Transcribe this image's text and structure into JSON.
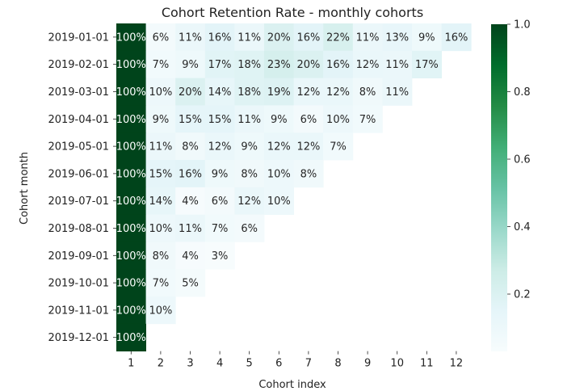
{
  "chart_data": {
    "type": "heatmap",
    "title": "Cohort Retention Rate - monthly cohorts",
    "xlabel": "Cohort index",
    "ylabel": "Cohort month",
    "x": [
      "1",
      "2",
      "3",
      "4",
      "5",
      "6",
      "7",
      "8",
      "9",
      "10",
      "11",
      "12"
    ],
    "y": [
      "2019-01-01",
      "2019-02-01",
      "2019-03-01",
      "2019-04-01",
      "2019-05-01",
      "2019-06-01",
      "2019-07-01",
      "2019-08-01",
      "2019-09-01",
      "2019-10-01",
      "2019-11-01",
      "2019-12-01"
    ],
    "values": [
      [
        1.0,
        0.06,
        0.11,
        0.16,
        0.11,
        0.2,
        0.16,
        0.22,
        0.11,
        0.13,
        0.09,
        0.16
      ],
      [
        1.0,
        0.07,
        0.09,
        0.17,
        0.18,
        0.23,
        0.2,
        0.16,
        0.12,
        0.11,
        0.17
      ],
      [
        1.0,
        0.1,
        0.2,
        0.14,
        0.18,
        0.19,
        0.12,
        0.12,
        0.08,
        0.11
      ],
      [
        1.0,
        0.09,
        0.15,
        0.15,
        0.11,
        0.09,
        0.06,
        0.1,
        0.07
      ],
      [
        1.0,
        0.11,
        0.08,
        0.12,
        0.09,
        0.12,
        0.12,
        0.07
      ],
      [
        1.0,
        0.15,
        0.16,
        0.09,
        0.08,
        0.1,
        0.08
      ],
      [
        1.0,
        0.14,
        0.04,
        0.06,
        0.12,
        0.1
      ],
      [
        1.0,
        0.1,
        0.11,
        0.07,
        0.06
      ],
      [
        1.0,
        0.08,
        0.04,
        0.03
      ],
      [
        1.0,
        0.07,
        0.05
      ],
      [
        1.0,
        0.1
      ],
      [
        1.0
      ]
    ],
    "labels": [
      [
        "100%",
        "6%",
        "11%",
        "16%",
        "11%",
        "20%",
        "16%",
        "22%",
        "11%",
        "13%",
        "9%",
        "16%"
      ],
      [
        "100%",
        "7%",
        "9%",
        "17%",
        "18%",
        "23%",
        "20%",
        "16%",
        "12%",
        "11%",
        "17%"
      ],
      [
        "100%",
        "10%",
        "20%",
        "14%",
        "18%",
        "19%",
        "12%",
        "12%",
        "8%",
        "11%"
      ],
      [
        "100%",
        "9%",
        "15%",
        "15%",
        "11%",
        "9%",
        "6%",
        "10%",
        "7%"
      ],
      [
        "100%",
        "11%",
        "8%",
        "12%",
        "9%",
        "12%",
        "12%",
        "7%"
      ],
      [
        "100%",
        "15%",
        "16%",
        "9%",
        "8%",
        "10%",
        "8%"
      ],
      [
        "100%",
        "14%",
        "4%",
        "6%",
        "12%",
        "10%"
      ],
      [
        "100%",
        "10%",
        "11%",
        "7%",
        "6%"
      ],
      [
        "100%",
        "8%",
        "4%",
        "3%"
      ],
      [
        "100%",
        "7%",
        "5%"
      ],
      [
        "100%",
        "10%"
      ],
      [
        "100%"
      ]
    ],
    "colorbar": {
      "range": [
        0.03,
        1.0
      ],
      "ticks": [
        0.2,
        0.4,
        0.6,
        0.8,
        1.0
      ],
      "tick_labels": [
        "0.2",
        "0.4",
        "0.6",
        "0.8",
        "1.0"
      ],
      "colormap": "BuGn"
    },
    "grid": false
  }
}
